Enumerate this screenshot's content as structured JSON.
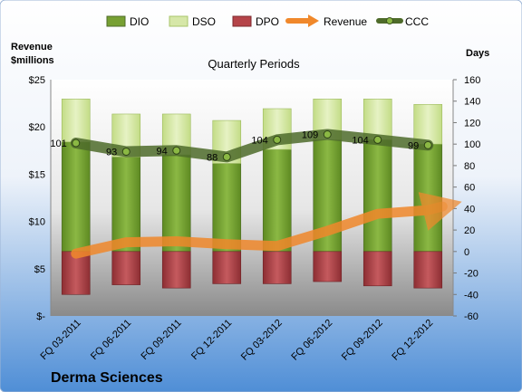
{
  "colors": {
    "dio": "#77a033",
    "dso": "#d6e7a8",
    "dpo": "#b54449",
    "revenue": "#f0882b",
    "ccc": "#4e6b2a",
    "background_top": "#ffffff",
    "background_bottom": "#4f8ed6"
  },
  "chart_data": {
    "type": "bar",
    "title": "Quarterly Periods",
    "company": "Derma Sciences",
    "left_axis_label": "Revenue $millions",
    "right_axis_label": "Days",
    "categories": [
      "FQ 03-2011",
      "FQ 06-2011",
      "FQ 09-2011",
      "FQ 12-2011",
      "FQ 03-2012",
      "FQ 06-2012",
      "FQ 09-2012",
      "FQ 12-2012"
    ],
    "legend": [
      "DIO",
      "DSO",
      "DPO",
      "Revenue",
      "CCC"
    ],
    "left_ticks": [
      "$25",
      "$20",
      "$15",
      "$10",
      "$5",
      "$-"
    ],
    "right_ticks": [
      "160",
      "140",
      "120",
      "100",
      "80",
      "60",
      "40",
      "20",
      "0",
      "-20",
      "-40",
      "-60"
    ],
    "left_ylim": [
      0,
      25
    ],
    "right_ylim": [
      -60,
      160
    ],
    "series": [
      {
        "name": "DIO",
        "axis": "right",
        "stacked": true,
        "values": [
          102,
          88,
          90,
          82,
          95,
          104,
          104,
          100
        ]
      },
      {
        "name": "DSO",
        "axis": "right",
        "stacked": true,
        "values": [
          40,
          40,
          38,
          40,
          38,
          38,
          38,
          37
        ]
      },
      {
        "name": "DPO",
        "axis": "right",
        "stacked": true,
        "values": [
          -40,
          -31,
          -34,
          -30,
          -30,
          -28,
          -32,
          -34
        ]
      },
      {
        "name": "Revenue",
        "axis": "left",
        "values": [
          6.6,
          7.8,
          7.9,
          7.6,
          7.4,
          9.0,
          10.8,
          11.2
        ]
      },
      {
        "name": "CCC",
        "axis": "right",
        "values": [
          101,
          93,
          94,
          88,
          104,
          109,
          104,
          99
        ]
      }
    ],
    "ccc_labels": [
      "101",
      "93",
      "94",
      "88",
      "104",
      "109",
      "104",
      "99"
    ]
  }
}
